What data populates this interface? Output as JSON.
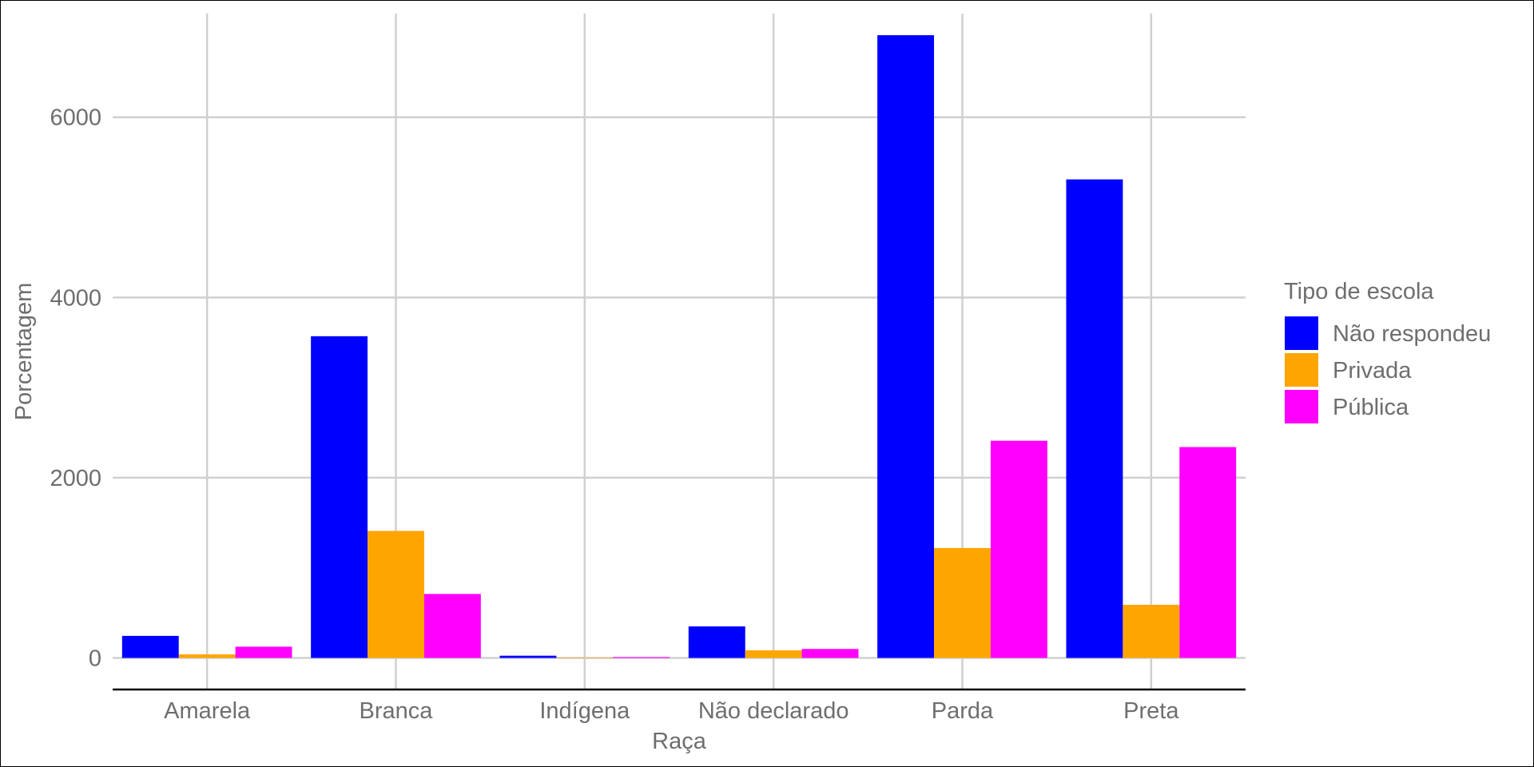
{
  "chart_data": {
    "type": "bar",
    "xlabel": "Raça",
    "ylabel": "Porcentagem",
    "categories": [
      "Amarela",
      "Branca",
      "Indígena",
      "Não declarado",
      "Parda",
      "Preta"
    ],
    "series": [
      {
        "name": "Não respondeu",
        "color": "#0000ff",
        "values": [
          245,
          3570,
          25,
          350,
          6910,
          5310
        ]
      },
      {
        "name": "Privada",
        "color": "#ffa500",
        "values": [
          40,
          1410,
          5,
          85,
          1220,
          590
        ]
      },
      {
        "name": "Pública",
        "color": "#ff00ff",
        "values": [
          125,
          710,
          10,
          100,
          2410,
          2340
        ]
      }
    ],
    "yticks": [
      0,
      2000,
      4000,
      6000
    ],
    "ylim": [
      -350,
      7150
    ],
    "grid": true,
    "legend": {
      "title": "Tipo de escola",
      "position": "right"
    }
  }
}
